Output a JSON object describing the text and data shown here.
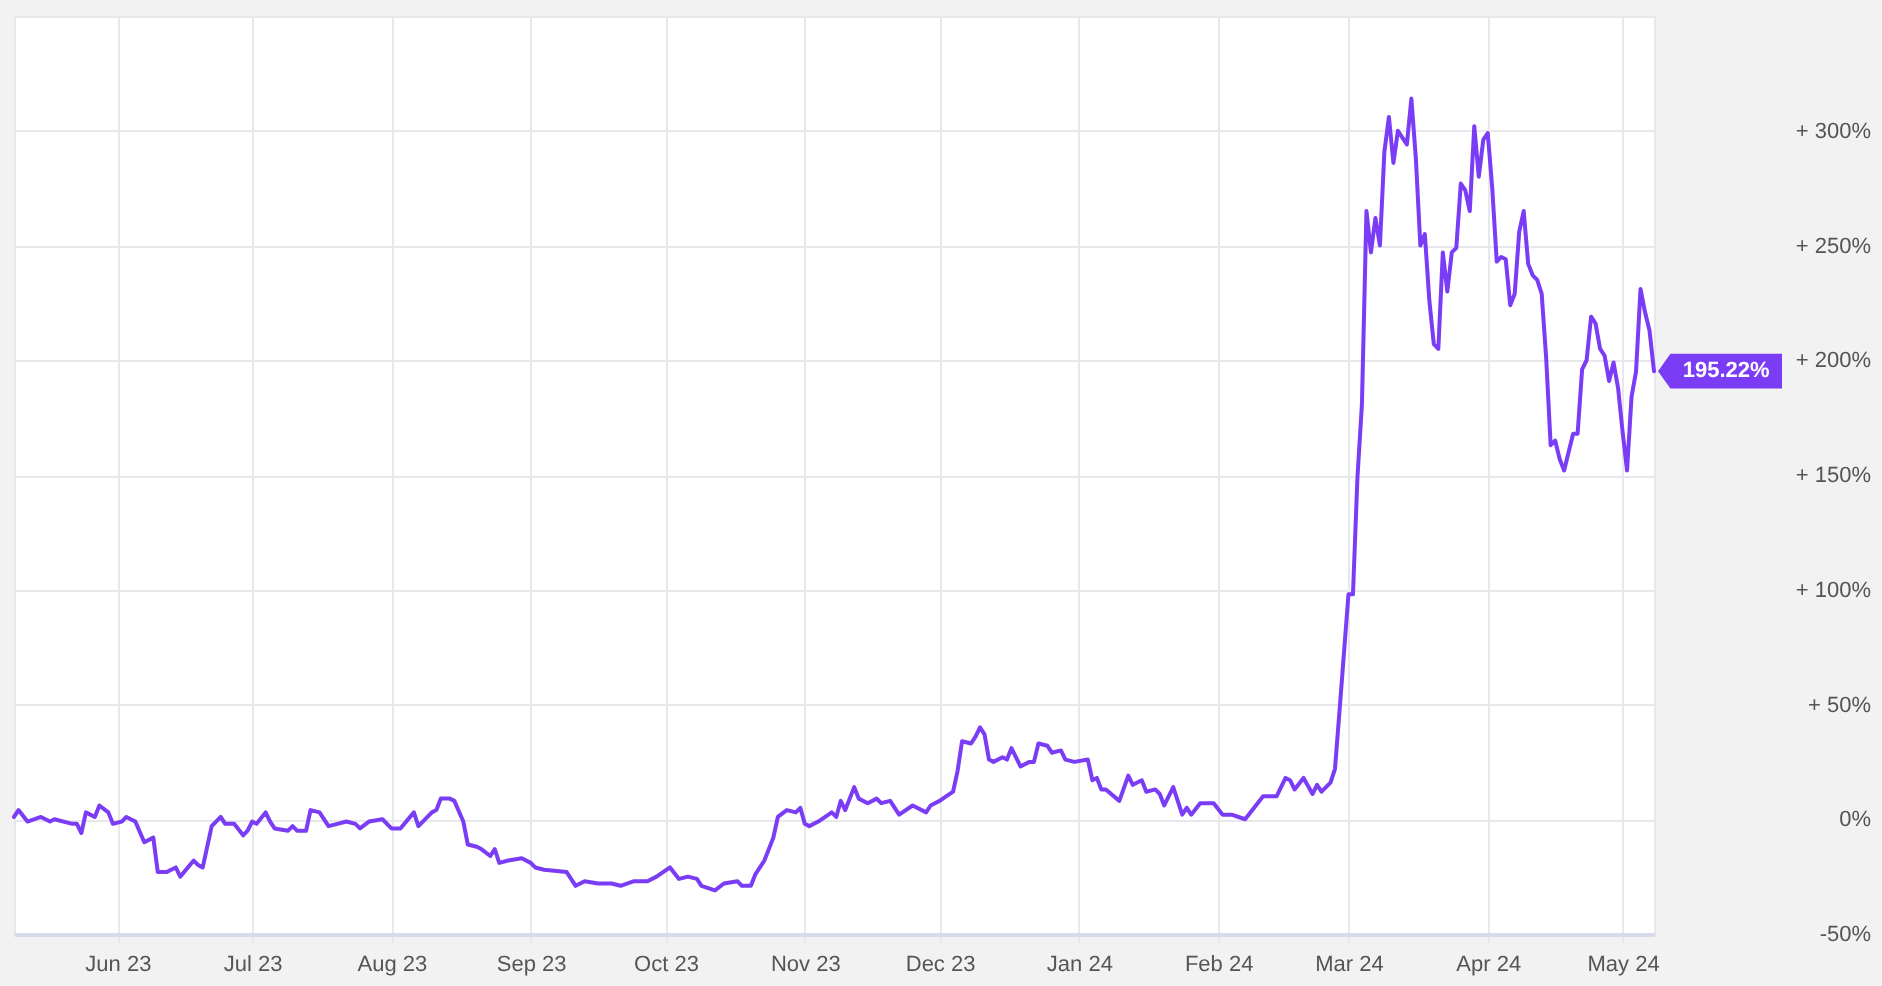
{
  "chart_data": {
    "type": "line",
    "color": "#7a3cf5",
    "line_style": "solid",
    "grid": true,
    "xlim": [
      "2023-05-09",
      "2024-05-08"
    ],
    "xticks": [
      {
        "value": "2023-06",
        "label": "Jun 23"
      },
      {
        "value": "2023-07",
        "label": "Jul 23"
      },
      {
        "value": "2023-08",
        "label": "Aug 23"
      },
      {
        "value": "2023-09",
        "label": "Sep 23"
      },
      {
        "value": "2023-10",
        "label": "Oct 23"
      },
      {
        "value": "2023-11",
        "label": "Nov 23"
      },
      {
        "value": "2023-12",
        "label": "Dec 23"
      },
      {
        "value": "2024-01",
        "label": "Jan 24"
      },
      {
        "value": "2024-02",
        "label": "Feb 24"
      },
      {
        "value": "2024-03",
        "label": "Mar 24"
      },
      {
        "value": "2024-04",
        "label": "Apr 24"
      },
      {
        "value": "2024-05",
        "label": "May 24"
      }
    ],
    "ylim": [
      -50,
      350
    ],
    "yticks": [
      {
        "value": -50,
        "label": "-50%"
      },
      {
        "value": 0,
        "label": "0%"
      },
      {
        "value": 50,
        "label": "+ 50%"
      },
      {
        "value": 100,
        "label": "+ 100%"
      },
      {
        "value": 150,
        "label": "+ 150%"
      },
      {
        "value": 200,
        "label": "+ 200%"
      },
      {
        "value": 250,
        "label": "+ 250%"
      },
      {
        "value": 300,
        "label": "+ 300%"
      }
    ],
    "annotations": [
      {
        "text": "195.22%",
        "x": "2024-05-08",
        "y": 195.22
      }
    ],
    "x": [
      "2023-05-09",
      "2023-05-10",
      "2023-05-12",
      "2023-05-15",
      "2023-05-17",
      "2023-05-18",
      "2023-05-22",
      "2023-05-23",
      "2023-05-24",
      "2023-05-25",
      "2023-05-27",
      "2023-05-28",
      "2023-05-30",
      "2023-05-31",
      "2023-06-02",
      "2023-06-03",
      "2023-06-05",
      "2023-06-07",
      "2023-06-09",
      "2023-06-10",
      "2023-06-12",
      "2023-06-14",
      "2023-06-15",
      "2023-06-18",
      "2023-06-19",
      "2023-06-20",
      "2023-06-22",
      "2023-06-24",
      "2023-06-25",
      "2023-06-27",
      "2023-06-29",
      "2023-06-30",
      "2023-07-01",
      "2023-07-02",
      "2023-07-04",
      "2023-07-05",
      "2023-07-06",
      "2023-07-09",
      "2023-07-10",
      "2023-07-11",
      "2023-07-13",
      "2023-07-14",
      "2023-07-16",
      "2023-07-18",
      "2023-07-20",
      "2023-07-22",
      "2023-07-24",
      "2023-07-25",
      "2023-07-27",
      "2023-07-30",
      "2023-08-01",
      "2023-08-03",
      "2023-08-06",
      "2023-08-07",
      "2023-08-08",
      "2023-08-10",
      "2023-08-11",
      "2023-08-12",
      "2023-08-14",
      "2023-08-15",
      "2023-08-17",
      "2023-08-18",
      "2023-08-20",
      "2023-08-21",
      "2023-08-23",
      "2023-08-24",
      "2023-08-25",
      "2023-08-27",
      "2023-08-30",
      "2023-09-01",
      "2023-09-02",
      "2023-09-04",
      "2023-09-09",
      "2023-09-11",
      "2023-09-13",
      "2023-09-16",
      "2023-09-19",
      "2023-09-21",
      "2023-09-24",
      "2023-09-27",
      "2023-09-29",
      "2023-10-02",
      "2023-10-04",
      "2023-10-06",
      "2023-10-08",
      "2023-10-09",
      "2023-10-12",
      "2023-10-14",
      "2023-10-17",
      "2023-10-18",
      "2023-10-20",
      "2023-10-21",
      "2023-10-23",
      "2023-10-25",
      "2023-10-26",
      "2023-10-28",
      "2023-10-30",
      "2023-10-31",
      "2023-11-01",
      "2023-11-02",
      "2023-11-04",
      "2023-11-07",
      "2023-11-08",
      "2023-11-09",
      "2023-11-10",
      "2023-11-12",
      "2023-11-13",
      "2023-11-15",
      "2023-11-17",
      "2023-11-18",
      "2023-11-20",
      "2023-11-22",
      "2023-11-25",
      "2023-11-28",
      "2023-11-29",
      "2023-12-01",
      "2023-12-04",
      "2023-12-05",
      "2023-12-06",
      "2023-12-08",
      "2023-12-09",
      "2023-12-10",
      "2023-12-11",
      "2023-12-12",
      "2023-12-13",
      "2023-12-15",
      "2023-12-16",
      "2023-12-17",
      "2023-12-19",
      "2023-12-21",
      "2023-12-22",
      "2023-12-23",
      "2023-12-25",
      "2023-12-26",
      "2023-12-28",
      "2023-12-29",
      "2023-12-31",
      "2024-01-03",
      "2024-01-04",
      "2024-01-05",
      "2024-01-06",
      "2024-01-07",
      "2024-01-10",
      "2024-01-12",
      "2024-01-13",
      "2024-01-15",
      "2024-01-16",
      "2024-01-18",
      "2024-01-19",
      "2024-01-20",
      "2024-01-22",
      "2024-01-24",
      "2024-01-25",
      "2024-01-26",
      "2024-01-28",
      "2024-01-31",
      "2024-02-02",
      "2024-02-04",
      "2024-02-07",
      "2024-02-09",
      "2024-02-11",
      "2024-02-14",
      "2024-02-16",
      "2024-02-17",
      "2024-02-18",
      "2024-02-20",
      "2024-02-22",
      "2024-02-23",
      "2024-02-24",
      "2024-02-26",
      "2024-02-27",
      "2024-02-28",
      "2024-03-01",
      "2024-03-02",
      "2024-03-03",
      "2024-03-04",
      "2024-03-05",
      "2024-03-06",
      "2024-03-07",
      "2024-03-08",
      "2024-03-09",
      "2024-03-10",
      "2024-03-11",
      "2024-03-12",
      "2024-03-13",
      "2024-03-14",
      "2024-03-15",
      "2024-03-16",
      "2024-03-17",
      "2024-03-18",
      "2024-03-19",
      "2024-03-20",
      "2024-03-21",
      "2024-03-22",
      "2024-03-23",
      "2024-03-24",
      "2024-03-25",
      "2024-03-26",
      "2024-03-27",
      "2024-03-28",
      "2024-03-29",
      "2024-03-30",
      "2024-03-31",
      "2024-04-01",
      "2024-04-02",
      "2024-04-03",
      "2024-04-04",
      "2024-04-05",
      "2024-04-06",
      "2024-04-07",
      "2024-04-08",
      "2024-04-09",
      "2024-04-10",
      "2024-04-11",
      "2024-04-12",
      "2024-04-13",
      "2024-04-14",
      "2024-04-15",
      "2024-04-16",
      "2024-04-17",
      "2024-04-18",
      "2024-04-19",
      "2024-04-20",
      "2024-04-21",
      "2024-04-22",
      "2024-04-23",
      "2024-04-24",
      "2024-04-25",
      "2024-04-26",
      "2024-04-27",
      "2024-04-28",
      "2024-04-29",
      "2024-04-30",
      "2024-05-01",
      "2024-05-02",
      "2024-05-03",
      "2024-05-04",
      "2024-05-05",
      "2024-05-06",
      "2024-05-07",
      "2024-05-08"
    ],
    "values": [
      1,
      4,
      -1,
      1,
      -1,
      0,
      -2,
      -2,
      -6,
      3,
      1,
      6,
      3,
      -2,
      -1,
      1,
      -1,
      -10,
      -8,
      -23,
      -23,
      -21,
      -25,
      -18,
      -20,
      -21,
      -3,
      1,
      -2,
      -2,
      -7,
      -5,
      -1,
      -2,
      3,
      -1,
      -4,
      -5,
      -3,
      -5,
      -5,
      4,
      3,
      -3,
      -2,
      -1,
      -2,
      -4,
      -1,
      0,
      -4,
      -4,
      3,
      -3,
      -1,
      3,
      4,
      9,
      9,
      8,
      -1,
      -11,
      -12,
      -13,
      -16,
      -13,
      -19,
      -18,
      -17,
      -19,
      -21,
      -22,
      -23,
      -29,
      -27,
      -28,
      -28,
      -29,
      -27,
      -27,
      -25,
      -21,
      -26,
      -25,
      -26,
      -29,
      -31,
      -28,
      -27,
      -29,
      -29,
      -24,
      -18,
      -8,
      1,
      4,
      3,
      5,
      -2,
      -3,
      -1,
      3,
      1,
      8,
      4,
      14,
      9,
      7,
      9,
      7,
      8,
      2,
      6,
      3,
      6,
      8,
      12,
      21,
      34,
      33,
      36,
      40,
      37,
      26,
      25,
      27,
      26,
      31,
      23,
      25,
      25,
      33,
      32,
      29,
      30,
      26,
      25,
      26,
      17,
      18,
      13,
      13,
      8,
      19,
      15,
      17,
      12,
      13,
      11,
      6,
      14,
      2,
      5,
      2,
      7,
      7,
      2,
      2,
      0,
      5,
      10,
      10,
      18,
      17,
      13,
      18,
      11,
      15,
      12,
      16,
      22,
      47,
      98,
      98,
      149,
      181,
      265,
      247,
      262,
      250,
      291,
      306,
      286,
      300,
      297,
      294,
      314,
      288,
      250,
      255,
      226,
      207,
      205,
      247,
      230,
      247,
      249,
      277,
      274,
      265,
      302,
      280,
      296,
      299,
      275,
      243,
      245,
      244,
      224,
      229,
      256,
      265,
      242,
      237,
      235,
      229,
      201,
      163,
      165,
      157,
      152,
      160,
      168,
      168,
      196,
      200,
      219,
      216,
      205,
      202,
      191,
      199,
      188,
      169,
      152,
      184,
      195,
      231,
      221,
      213,
      195.22
    ]
  }
}
